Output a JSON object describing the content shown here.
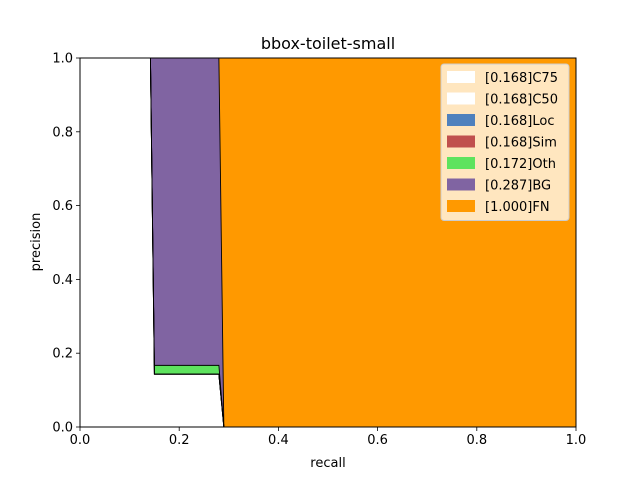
{
  "chart_data": {
    "type": "area",
    "title": "bbox-toilet-small",
    "xlabel": "recall",
    "ylabel": "precision",
    "xlim": [
      0,
      1
    ],
    "ylim": [
      0,
      1
    ],
    "xticks": [
      "0.0",
      "0.2",
      "0.4",
      "0.6",
      "0.8",
      "1.0"
    ],
    "yticks": [
      "0.0",
      "0.2",
      "0.4",
      "0.6",
      "0.8",
      "1.0"
    ],
    "grid": false,
    "legend_position": "top-right",
    "series": [
      {
        "name": "[0.168]C75",
        "color": "#ffffff",
        "points": [
          [
            0.0,
            1.0
          ],
          [
            0.142,
            1.0
          ],
          [
            0.15,
            0.143
          ],
          [
            0.28,
            0.143
          ],
          [
            0.29,
            0.0
          ]
        ]
      },
      {
        "name": "[0.168]C50",
        "color": "#ffffff",
        "points": [
          [
            0.0,
            1.0
          ],
          [
            0.142,
            1.0
          ],
          [
            0.15,
            0.143
          ],
          [
            0.28,
            0.143
          ],
          [
            0.29,
            0.0
          ]
        ]
      },
      {
        "name": "[0.168]Loc",
        "color": "#4f81bd",
        "points": [
          [
            0.0,
            1.0
          ],
          [
            0.142,
            1.0
          ],
          [
            0.15,
            0.143
          ],
          [
            0.28,
            0.143
          ],
          [
            0.29,
            0.0
          ]
        ]
      },
      {
        "name": "[0.168]Sim",
        "color": "#c0504d",
        "points": [
          [
            0.0,
            1.0
          ],
          [
            0.142,
            1.0
          ],
          [
            0.15,
            0.143
          ],
          [
            0.28,
            0.143
          ],
          [
            0.29,
            0.0
          ]
        ]
      },
      {
        "name": "[0.172]Oth",
        "color": "#5ee35e",
        "points": [
          [
            0.0,
            1.0
          ],
          [
            0.142,
            1.0
          ],
          [
            0.15,
            0.167
          ],
          [
            0.28,
            0.167
          ],
          [
            0.29,
            0.0
          ]
        ]
      },
      {
        "name": "[0.287]BG",
        "color": "#8064a2",
        "points": [
          [
            0.0,
            1.0
          ],
          [
            0.28,
            1.0
          ],
          [
            0.29,
            0.0
          ]
        ]
      },
      {
        "name": "[1.000]FN",
        "color": "#ff9900",
        "points": [
          [
            0.0,
            1.0
          ],
          [
            1.0,
            1.0
          ],
          [
            1.0,
            0.0
          ]
        ]
      }
    ]
  }
}
